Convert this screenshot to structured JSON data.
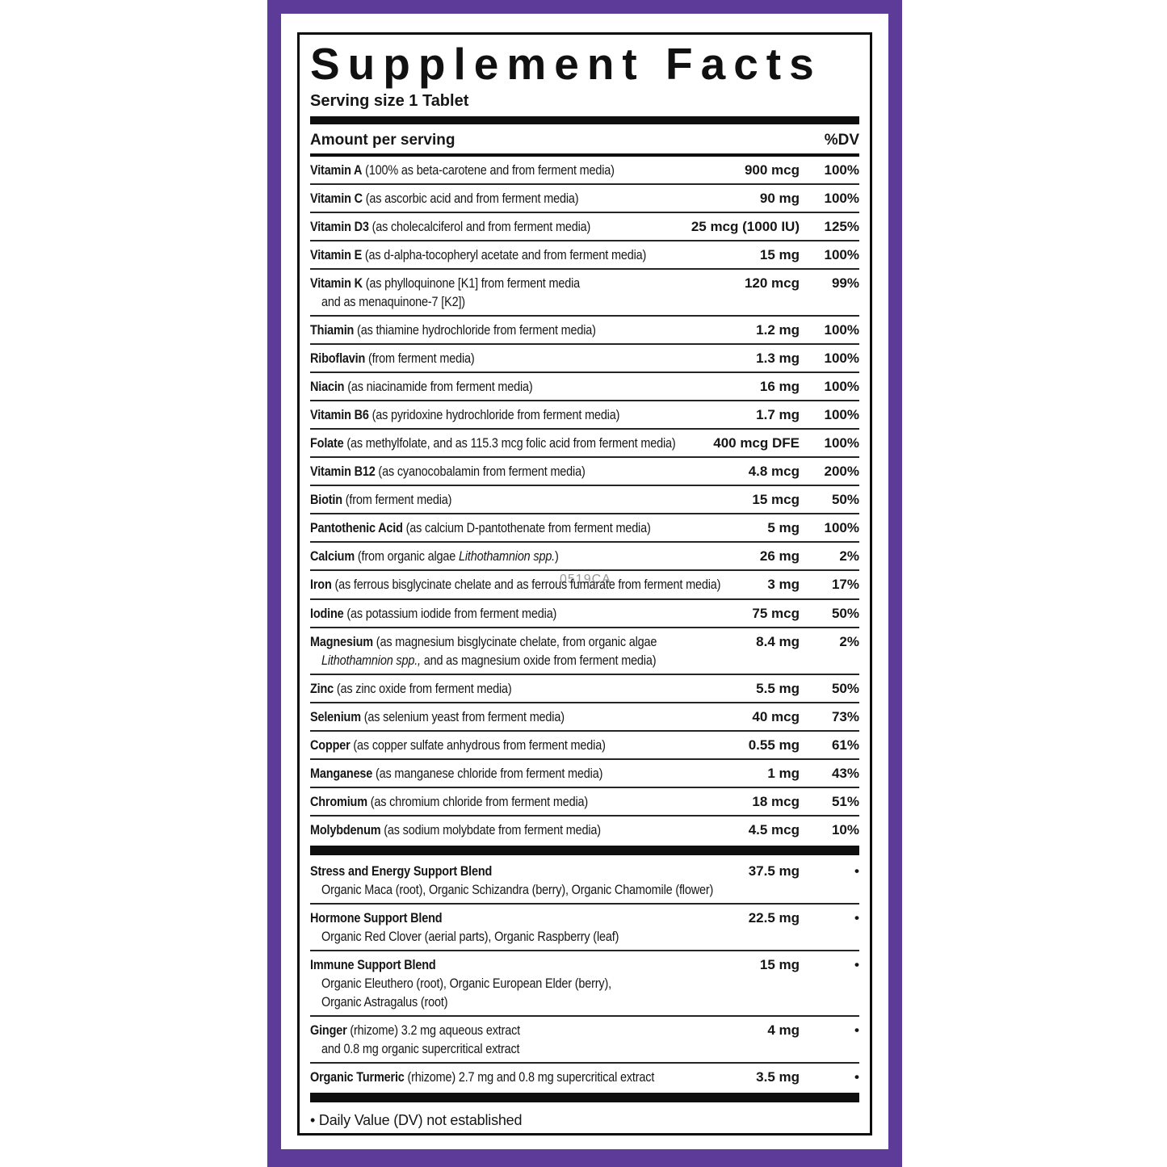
{
  "panel": {
    "title": "Supplement Facts",
    "serving_size": "Serving size 1 Tablet",
    "amount_header": "Amount per serving",
    "dv_header": "%DV",
    "watermark": "0519CA",
    "footnote": "• Daily Value (DV) not established",
    "colors": {
      "frame_purple": "#5C3B99",
      "rule_black": "#0f0f0f"
    },
    "nutrients": [
      {
        "name": "Vitamin A",
        "pre": " (100% as beta-carotene and from ferment media)",
        "amount": "900 mcg",
        "dv": "100%"
      },
      {
        "name": "Vitamin C",
        "pre": " (as ascorbic acid and from ferment media)",
        "amount": "90 mg",
        "dv": "100%"
      },
      {
        "name": "Vitamin D3",
        "pre": " (as cholecalciferol and from ferment media)",
        "amount": "25 mcg (1000 IU)",
        "dv": "125%"
      },
      {
        "name": "Vitamin E",
        "pre": " (as d-alpha-tocopheryl acetate and from ferment media)",
        "amount": "15 mg",
        "dv": "100%"
      },
      {
        "name": "Vitamin K",
        "pre": " (as phylloquinone [K1] from ferment media",
        "amount": "120 mcg",
        "dv": "99%",
        "line2": "and as menaquinone-7 [K2])"
      },
      {
        "name": "Thiamin",
        "pre": " (as thiamine hydrochloride from ferment media)",
        "amount": "1.2 mg",
        "dv": "100%"
      },
      {
        "name": "Riboflavin",
        "pre": " (from ferment media)",
        "amount": "1.3 mg",
        "dv": "100%"
      },
      {
        "name": "Niacin",
        "pre": " (as niacinamide from ferment media)",
        "amount": "16 mg",
        "dv": "100%"
      },
      {
        "name": "Vitamin B6",
        "pre": " (as pyridoxine hydrochloride from ferment media)",
        "amount": "1.7 mg",
        "dv": "100%"
      },
      {
        "name": "Folate",
        "pre": " (as methylfolate, and as 115.3 mcg folic acid from ferment media)",
        "amount": "400 mcg DFE",
        "dv": "100%"
      },
      {
        "name": "Vitamin B12",
        "pre": " (as cyanocobalamin from ferment media)",
        "amount": "4.8 mcg",
        "dv": "200%"
      },
      {
        "name": "Biotin",
        "pre": " (from ferment media)",
        "amount": "15 mcg",
        "dv": "50%"
      },
      {
        "name": "Pantothenic Acid",
        "pre": " (as calcium D-pantothenate from ferment media)",
        "amount": "5 mg",
        "dv": "100%"
      },
      {
        "name": "Calcium",
        "pre": " (from organic algae ",
        "italic": "Lithothamnion spp.",
        "post": ")",
        "amount": "26 mg",
        "dv": "2%"
      },
      {
        "name": "Iron",
        "pre": " (as ferrous bisglycinate chelate and as ferrous fumarate from ferment media)",
        "amount": "3 mg",
        "dv": "17%"
      },
      {
        "name": "Iodine",
        "pre": " (as potassium iodide from ferment media)",
        "amount": "75 mcg",
        "dv": "50%"
      },
      {
        "name": "Magnesium",
        "pre": " (as magnesium bisglycinate chelate, from organic algae",
        "amount": "8.4 mg",
        "dv": "2%",
        "line2_italic": "Lithothamnion spp.,",
        "line2": " and as magnesium oxide from ferment media)"
      },
      {
        "name": "Zinc",
        "pre": " (as zinc oxide from ferment media)",
        "amount": "5.5 mg",
        "dv": "50%"
      },
      {
        "name": "Selenium",
        "pre": " (as selenium yeast from ferment media)",
        "amount": "40 mcg",
        "dv": "73%"
      },
      {
        "name": "Copper",
        "pre": " (as copper sulfate anhydrous from ferment media)",
        "amount": "0.55 mg",
        "dv": "61%"
      },
      {
        "name": "Manganese",
        "pre": " (as manganese chloride from ferment media)",
        "amount": "1 mg",
        "dv": "43%"
      },
      {
        "name": "Chromium",
        "pre": " (as chromium chloride from ferment media)",
        "amount": "18 mcg",
        "dv": "51%"
      },
      {
        "name": "Molybdenum",
        "pre": " (as sodium molybdate from ferment media)",
        "amount": "4.5 mcg",
        "dv": "10%"
      }
    ],
    "blends": [
      {
        "name": "Stress and Energy Support Blend",
        "pre": "",
        "amount": "37.5 mg",
        "dv": "•",
        "subs": [
          "Organic Maca (root), Organic Schizandra (berry), Organic Chamomile (flower)"
        ]
      },
      {
        "name": "Hormone Support Blend",
        "pre": "",
        "amount": "22.5 mg",
        "dv": "•",
        "subs": [
          "Organic Red Clover (aerial parts), Organic Raspberry (leaf)"
        ]
      },
      {
        "name": "Immune Support Blend",
        "pre": "",
        "amount": "15 mg",
        "dv": "•",
        "subs": [
          "Organic Eleuthero (root), Organic European Elder (berry),",
          "Organic Astragalus (root)"
        ]
      },
      {
        "name": "Ginger",
        "pre": " (rhizome) 3.2 mg aqueous extract",
        "amount": "4 mg",
        "dv": "•",
        "subs": [
          "and 0.8 mg organic supercritical extract"
        ]
      },
      {
        "name": "Organic Turmeric",
        "pre": " (rhizome) 2.7 mg and 0.8 mg supercritical extract",
        "amount": "3.5 mg",
        "dv": "•",
        "subs": []
      }
    ]
  }
}
